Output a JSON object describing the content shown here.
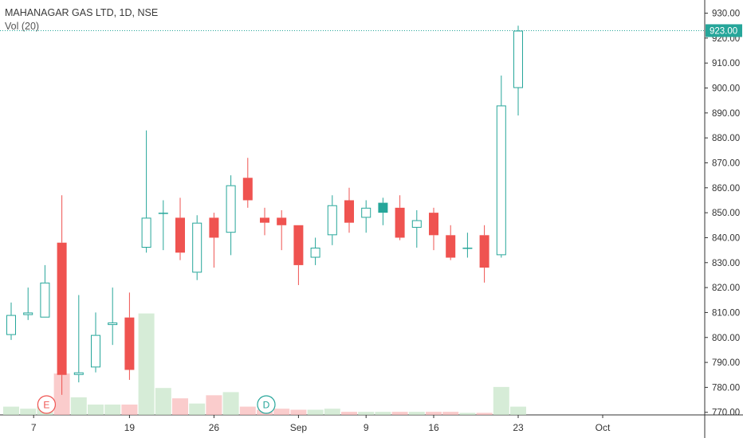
{
  "chart_data": {
    "type": "candlestick",
    "title": "MAHANAGAR GAS LTD, 1D, NSE",
    "volume_label": "Vol (20)",
    "y_axis": {
      "ylim": [
        768,
        934
      ],
      "ticks": [
        "770.00",
        "780.00",
        "790.00",
        "800.00",
        "810.00",
        "820.00",
        "830.00",
        "840.00",
        "850.00",
        "860.00",
        "870.00",
        "880.00",
        "890.00",
        "900.00",
        "910.00",
        "920.00",
        "930.00"
      ],
      "position": "right"
    },
    "x_axis": {
      "tick_labels": [
        {
          "label": "7",
          "bar": 1
        },
        {
          "label": "19",
          "bar": 7
        },
        {
          "label": "26",
          "bar": 12
        },
        {
          "label": "Sep",
          "bar": 17
        },
        {
          "label": "9",
          "bar": 21
        },
        {
          "label": "16",
          "bar": 25
        },
        {
          "label": "23",
          "bar": 30
        },
        {
          "label": "Oct",
          "bar": 35
        }
      ]
    },
    "last_price": {
      "value": 923.0,
      "label": "923.00"
    },
    "colors": {
      "up": "#26a69a",
      "down": "#ef5350",
      "up_volume": "#c8e6c9",
      "down_volume": "#f8bbbb",
      "grid": "#f0f3fa",
      "price_line": "#26a69a"
    },
    "event_markers": [
      {
        "label": "E",
        "bar": 2,
        "color": "#ef5350"
      },
      {
        "label": "D",
        "bar": 15,
        "color": "#26a69a"
      }
    ],
    "grid": false,
    "candles": [
      {
        "o": 801,
        "h": 814,
        "l": 799,
        "c": 809,
        "dir": "up",
        "vol": 0.8
      },
      {
        "o": 809,
        "h": 820,
        "l": 807,
        "c": 810,
        "dir": "up",
        "vol": 0.6
      },
      {
        "o": 808,
        "h": 829,
        "l": 808,
        "c": 822,
        "dir": "up",
        "vol": 0.8
      },
      {
        "o": 838,
        "h": 857,
        "l": 777,
        "c": 785,
        "dir": "down",
        "vol": 4.0
      },
      {
        "o": 785,
        "h": 817,
        "l": 782,
        "c": 786,
        "dir": "up",
        "vol": 1.7
      },
      {
        "o": 788,
        "h": 810,
        "l": 786,
        "c": 801,
        "dir": "up",
        "vol": 1.0
      },
      {
        "o": 805,
        "h": 820,
        "l": 797,
        "c": 806,
        "dir": "up",
        "vol": 1.0
      },
      {
        "o": 808,
        "h": 818,
        "l": 783,
        "c": 787,
        "dir": "down",
        "vol": 1.0
      },
      {
        "o": 836,
        "h": 883,
        "l": 834,
        "c": 848,
        "dir": "up",
        "vol": 9.8
      },
      {
        "o": 850,
        "h": 855,
        "l": 835,
        "c": 850,
        "dir": "up",
        "vol": 2.6
      },
      {
        "o": 848,
        "h": 856,
        "l": 831,
        "c": 834,
        "dir": "down",
        "vol": 1.6
      },
      {
        "o": 826,
        "h": 849,
        "l": 823,
        "c": 846,
        "dir": "up",
        "vol": 1.1
      },
      {
        "o": 848,
        "h": 850,
        "l": 828,
        "c": 840,
        "dir": "down",
        "vol": 1.9
      },
      {
        "o": 842,
        "h": 865,
        "l": 833,
        "c": 861,
        "dir": "up",
        "vol": 2.2
      },
      {
        "o": 864,
        "h": 872,
        "l": 852,
        "c": 855,
        "dir": "down",
        "vol": 0.8
      },
      {
        "o": 848,
        "h": 852,
        "l": 841,
        "c": 846,
        "dir": "down",
        "vol": 0.5
      },
      {
        "o": 848,
        "h": 851,
        "l": 835,
        "c": 845,
        "dir": "down",
        "vol": 0.6
      },
      {
        "o": 845,
        "h": 845,
        "l": 821,
        "c": 829,
        "dir": "down",
        "vol": 0.5
      },
      {
        "o": 832,
        "h": 840,
        "l": 829,
        "c": 836,
        "dir": "up",
        "vol": 0.5
      },
      {
        "o": 841,
        "h": 857,
        "l": 837,
        "c": 853,
        "dir": "up",
        "vol": 0.6
      },
      {
        "o": 855,
        "h": 860,
        "l": 842,
        "c": 846,
        "dir": "down",
        "vol": 0.3
      },
      {
        "o": 848,
        "h": 855,
        "l": 842,
        "c": 852,
        "dir": "up",
        "vol": 0.3
      },
      {
        "o": 850,
        "h": 856,
        "l": 845,
        "c": 854,
        "dir": "up_filled",
        "vol": 0.3
      },
      {
        "o": 852,
        "h": 857,
        "l": 839,
        "c": 840,
        "dir": "down",
        "vol": 0.3
      },
      {
        "o": 844,
        "h": 851,
        "l": 836,
        "c": 847,
        "dir": "up",
        "vol": 0.3
      },
      {
        "o": 850,
        "h": 852,
        "l": 835,
        "c": 841,
        "dir": "down",
        "vol": 0.3
      },
      {
        "o": 841,
        "h": 845,
        "l": 831,
        "c": 832,
        "dir": "down",
        "vol": 0.3
      },
      {
        "o": 836,
        "h": 842,
        "l": 832,
        "c": 836,
        "dir": "up",
        "vol": 0.2
      },
      {
        "o": 841,
        "h": 845,
        "l": 822,
        "c": 828,
        "dir": "down",
        "vol": 0.2
      },
      {
        "o": 833,
        "h": 905,
        "l": 832,
        "c": 893,
        "dir": "up",
        "vol": 2.7
      },
      {
        "o": 900,
        "h": 925,
        "l": 889,
        "c": 923,
        "dir": "up",
        "vol": 0.8
      }
    ]
  }
}
